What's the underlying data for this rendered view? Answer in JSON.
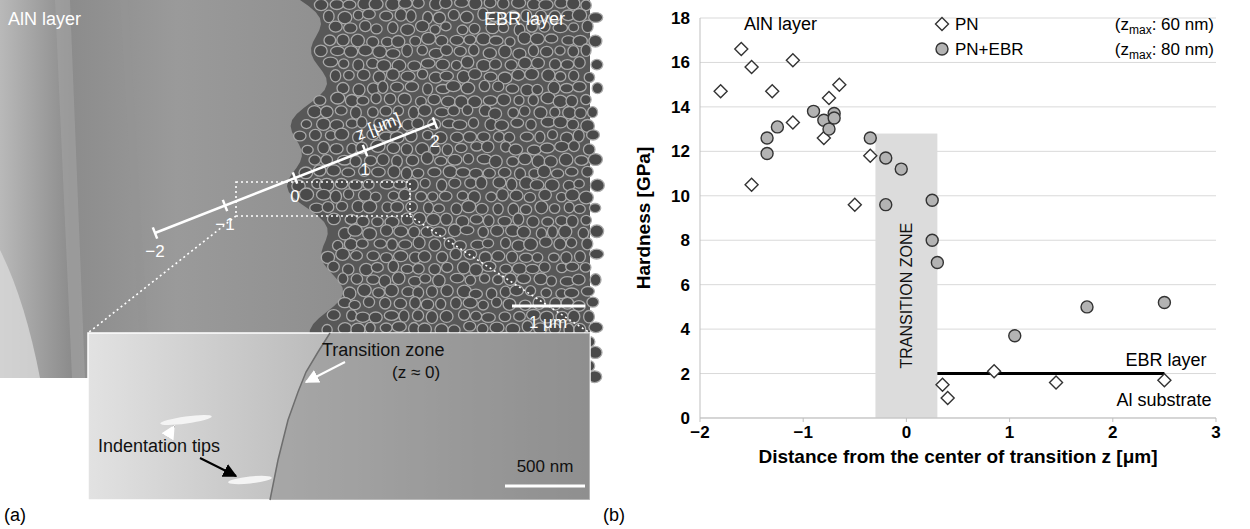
{
  "chart_data": {
    "type": "scatter",
    "letter": "(b)",
    "x_label": "Distance from the center of transition z [μm]",
    "y_label": "Hardness [GPa]",
    "xlim": [
      -2,
      3
    ],
    "ylim": [
      0,
      18
    ],
    "xticks": [
      {
        "value": -2,
        "label": "−2"
      },
      {
        "value": -1,
        "label": "−1"
      },
      0,
      1,
      2,
      3
    ],
    "yticks": [
      0,
      2,
      4,
      6,
      8,
      10,
      12,
      14,
      16,
      18
    ],
    "grid": true,
    "legend": "top-right",
    "series": [
      {
        "name": "PN",
        "marker": "diamond",
        "color": "#ffffff",
        "zmax_note": {
          "prefix": "(z",
          "subscript": "max",
          "suffix": ": 60 nm)"
        },
        "x": [
          -1.8,
          -1.6,
          -1.5,
          -1.3,
          -1.5,
          -1.1,
          -1.1,
          -0.75,
          -0.8,
          -0.65,
          -0.5,
          -0.35,
          0.35,
          0.4,
          0.85,
          1.45,
          2.5
        ],
        "values": [
          14.7,
          16.6,
          15.8,
          14.7,
          10.5,
          16.1,
          13.3,
          14.4,
          12.6,
          15.0,
          9.6,
          11.8,
          1.5,
          0.9,
          2.1,
          1.6,
          1.7
        ]
      },
      {
        "name": "PN+EBR",
        "marker": "circle",
        "color": "#b3b3b3",
        "zmax_note": {
          "prefix": "(z",
          "subscript": "max",
          "suffix": ": 80 nm)"
        },
        "x": [
          -1.35,
          -1.35,
          -1.25,
          -0.9,
          -0.8,
          -0.75,
          -0.7,
          -0.7,
          -0.35,
          -0.2,
          -0.2,
          -0.05,
          0.25,
          0.25,
          0.3,
          1.05,
          1.75,
          2.5
        ],
        "values": [
          11.9,
          12.6,
          13.1,
          13.8,
          13.4,
          13.0,
          13.7,
          13.5,
          12.6,
          11.7,
          9.6,
          11.2,
          9.8,
          8.0,
          7.0,
          3.7,
          5.0,
          5.2
        ]
      }
    ],
    "transition_zone": {
      "label": "TRANSITION ZONE",
      "x": [
        -0.3,
        0.3
      ],
      "y": [
        0,
        12.8
      ]
    },
    "substrate_line": {
      "x": [
        0.3,
        2.5
      ],
      "y": 2
    },
    "annotations": {
      "aln": "AlN layer",
      "ebr": "EBR layer",
      "al": "Al substrate"
    }
  },
  "panel_a": {
    "letter": "(a)",
    "aln_label": "AlN layer",
    "ebr_label": "EBR layer",
    "axis_title": "z [μm]",
    "zlim": [
      -2,
      2
    ],
    "axis_ticks": [
      {
        "value": -2,
        "label": "−2"
      },
      {
        "value": -1,
        "label": "−1"
      },
      0,
      1,
      2
    ],
    "scale_bar": "1 μm",
    "inset": {
      "transition_label": "Transition zone",
      "transition_note": "(z ≈ 0)",
      "tips_label": "Indentation tips",
      "scale_bar": "500 nm"
    }
  }
}
